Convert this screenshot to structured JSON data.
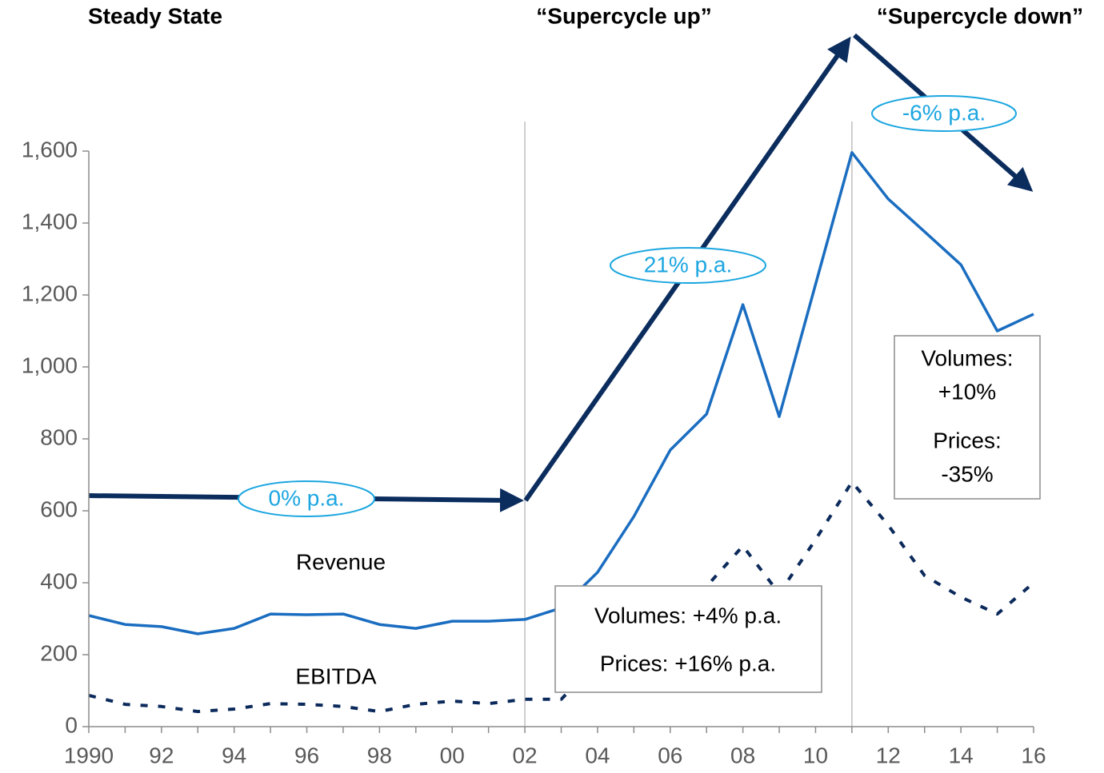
{
  "chart_data": {
    "type": "line",
    "headers": [
      "Steady State",
      "“Supercycle up”",
      "“Supercycle down”"
    ],
    "x": [
      1990,
      1991,
      1992,
      1993,
      1994,
      1995,
      1996,
      1997,
      1998,
      1999,
      2000,
      2001,
      2002,
      2003,
      2004,
      2005,
      2006,
      2007,
      2008,
      2009,
      2010,
      2011,
      2012,
      2013,
      2014,
      2015,
      2016
    ],
    "series": [
      {
        "name": "Revenue",
        "color": "#1a6dc0",
        "dash": false,
        "values": [
          309,
          284,
          278,
          258,
          273,
          313,
          311,
          313,
          284,
          273,
          293,
          293,
          298,
          330,
          429,
          584,
          769,
          869,
          1173,
          862,
          1230,
          1596,
          1467,
          1376,
          1284,
          1100,
          1147
        ]
      },
      {
        "name": "EBITDA",
        "color": "#0b2a5b",
        "dash": true,
        "values": [
          87,
          62,
          56,
          42,
          49,
          64,
          62,
          56,
          42,
          62,
          71,
          64,
          76,
          76,
          180,
          270,
          330,
          390,
          502,
          370,
          520,
          680,
          560,
          420,
          360,
          313,
          400
        ]
      }
    ],
    "annotations": {
      "steady_rate": "0% p.a.",
      "up_rate": "21% p.a.",
      "down_rate": "-6% p.a.",
      "up_box": [
        "Volumes: +4% p.a.",
        "Prices: +16% p.a."
      ],
      "down_box": [
        "Volumes:",
        "+10%",
        "Prices:",
        "-35%"
      ]
    },
    "xlim": [
      1990,
      2016
    ],
    "xticks": [
      1990,
      {
        "value": 1992,
        "label": "92"
      },
      {
        "value": 1994,
        "label": "94"
      },
      {
        "value": 1996,
        "label": "96"
      },
      {
        "value": 1998,
        "label": "98"
      },
      {
        "value": 2000,
        "label": "00"
      },
      {
        "value": 2002,
        "label": "02"
      },
      {
        "value": 2004,
        "label": "04"
      },
      {
        "value": 2006,
        "label": "06"
      },
      {
        "value": 2008,
        "label": "08"
      },
      {
        "value": 2010,
        "label": "10"
      },
      {
        "value": 2012,
        "label": "12"
      },
      {
        "value": 2014,
        "label": "14"
      },
      {
        "value": 2016,
        "label": "16"
      }
    ],
    "ylim": [
      0,
      1600
    ],
    "yticks": [
      0,
      200,
      400,
      600,
      800,
      {
        "value": 1000,
        "label": "1,000"
      },
      {
        "value": 1200,
        "label": "1,200"
      },
      {
        "value": 1400,
        "label": "1,400"
      },
      {
        "value": 1600,
        "label": "1,600"
      }
    ],
    "grid": false
  }
}
